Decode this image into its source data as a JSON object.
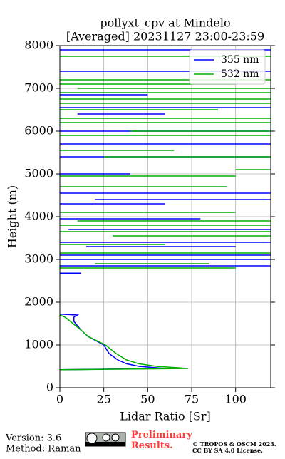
{
  "chart_data": {
    "type": "line",
    "title": "pollyxt_cpv at Mindelo",
    "subtitle": "[Averaged] 20231127 23:00-23:59",
    "xlabel": "Lidar Ratio [Sr]",
    "ylabel": "Height (m)",
    "xlim": [
      0,
      120
    ],
    "xticks": [
      0,
      25,
      50,
      75,
      100
    ],
    "ylim": [
      0,
      8000
    ],
    "yticks": [
      0,
      1000,
      2000,
      3000,
      4000,
      5000,
      6000,
      7000,
      8000
    ],
    "grid": true,
    "legend": "upper right",
    "series": [
      {
        "name": "355 nm",
        "color": "#0000ff",
        "y": [
          420,
          450,
          500,
          560,
          650,
          800,
          1000,
          1200,
          1350,
          1450,
          1550,
          1650,
          1700,
          1720,
          null,
          2680,
          2680,
          null,
          2850,
          2850,
          null,
          3000,
          3000,
          null,
          3100,
          3100,
          null,
          3300,
          3300,
          null,
          3400,
          3400,
          null,
          3700,
          3700,
          null,
          3950,
          3950,
          null,
          4300,
          4300,
          null,
          4400,
          4400,
          null,
          4550,
          4550,
          null,
          5000,
          5000,
          null,
          5400,
          5400,
          null,
          5700,
          5700,
          null,
          6000,
          6000,
          null,
          6400,
          6400,
          null,
          6550,
          6550,
          null,
          6850,
          6850,
          null,
          7400,
          7400,
          null,
          7900,
          7900
        ],
        "values": [
          0,
          60,
          45,
          38,
          33,
          28,
          25,
          16,
          12,
          10,
          8,
          8,
          10,
          0,
          null,
          0,
          12,
          null,
          0,
          120,
          null,
          0,
          120,
          null,
          0,
          120,
          null,
          15,
          100,
          null,
          0,
          120,
          null,
          5,
          120,
          null,
          0,
          80,
          null,
          0,
          60,
          null,
          20,
          120,
          null,
          0,
          120,
          null,
          0,
          40,
          null,
          0,
          120,
          null,
          0,
          120,
          null,
          0,
          120,
          null,
          10,
          60,
          null,
          0,
          120,
          null,
          0,
          50,
          null,
          0,
          120,
          null,
          0,
          120
        ]
      },
      {
        "name": "532 nm",
        "color": "#00b000",
        "y": [
          420,
          450,
          500,
          560,
          650,
          800,
          1000,
          1200,
          1350,
          1450,
          1550,
          1650,
          1700,
          null,
          2800,
          2800,
          null,
          2900,
          2900,
          null,
          3150,
          3150,
          null,
          3350,
          3350,
          null,
          3550,
          3550,
          null,
          3650,
          3650,
          null,
          3800,
          3800,
          null,
          3900,
          3900,
          null,
          4100,
          4100,
          null,
          4700,
          4700,
          null,
          4950,
          4950,
          null,
          5100,
          5100,
          null,
          5400,
          5400,
          null,
          5550,
          5550,
          null,
          5900,
          5900,
          null,
          6000,
          6000,
          null,
          6200,
          6200,
          null,
          6300,
          6300,
          null,
          6500,
          6500,
          null,
          6650,
          6650,
          null,
          6750,
          6750,
          null,
          6900,
          6900,
          null,
          7000,
          7000,
          null,
          7100,
          7100,
          null,
          7200,
          7200,
          null,
          7750,
          7750
        ],
        "values": [
          0,
          73,
          55,
          45,
          38,
          32,
          26,
          16,
          12,
          9,
          6,
          3,
          0,
          null,
          0,
          100,
          null,
          20,
          85,
          null,
          0,
          120,
          null,
          0,
          60,
          null,
          30,
          120,
          null,
          0,
          120,
          null,
          0,
          120,
          null,
          10,
          120,
          null,
          0,
          100,
          null,
          0,
          95,
          null,
          0,
          100,
          null,
          100,
          120,
          null,
          25,
          120,
          null,
          0,
          65,
          null,
          0,
          120,
          null,
          40,
          120,
          null,
          0,
          120,
          null,
          0,
          120,
          null,
          0,
          90,
          null,
          0,
          120,
          null,
          0,
          120,
          null,
          0,
          120,
          null,
          10,
          120,
          null,
          0,
          100,
          null,
          0,
          120,
          null,
          0,
          120
        ]
      }
    ]
  },
  "footer": {
    "version": "Version: 3.6",
    "method": "Method: Raman",
    "status": "Preliminary Results.",
    "copyright": "© TROPOS & OSCM 2023.",
    "license": "CC BY SA 4.0 License."
  }
}
